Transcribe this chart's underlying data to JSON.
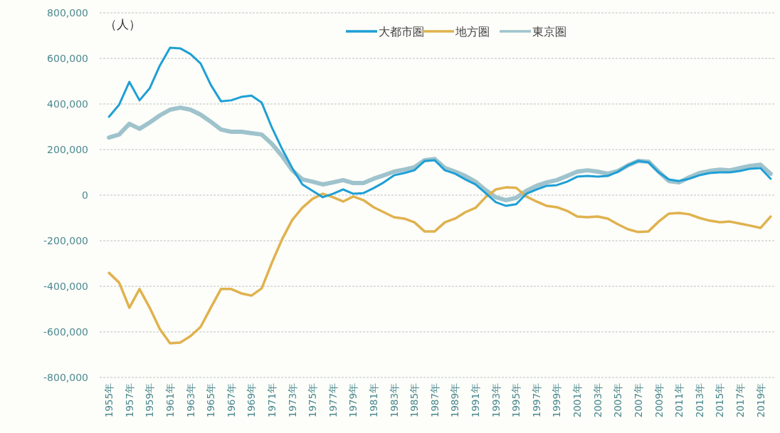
{
  "chart_data": {
    "type": "line",
    "ylabel": "（人）",
    "categories": [
      "1955年",
      null,
      "1957年",
      null,
      "1959年",
      null,
      "1961年",
      null,
      "1963年",
      null,
      "1965年",
      null,
      "1967年",
      null,
      "1969年",
      null,
      "1971年",
      null,
      "1973年",
      null,
      "1975年",
      null,
      "1977年",
      null,
      "1979年",
      null,
      "1981年",
      null,
      "1983年",
      null,
      "1985年",
      null,
      "1987年",
      null,
      "1989年",
      null,
      "1991年",
      null,
      "1993年",
      null,
      "1995年",
      null,
      "1997年",
      null,
      "1999年",
      null,
      "2001年",
      null,
      "2003年",
      null,
      "2005年",
      null,
      "2007年",
      null,
      "2009年",
      null,
      "2011年",
      null,
      "2013年",
      null,
      "2015年",
      null,
      "2017年",
      null,
      "2019年",
      null
    ],
    "series": [
      {
        "name": "大都市圏",
        "color": "#1e9fd6",
        "values": [
          344000,
          397000,
          497000,
          416000,
          469000,
          569000,
          647000,
          644000,
          619000,
          578000,
          484000,
          412000,
          416000,
          431000,
          437000,
          406000,
          297000,
          203000,
          119000,
          47000,
          19000,
          -9000,
          6000,
          25000,
          6000,
          9000,
          31000,
          56000,
          87000,
          97000,
          109000,
          150000,
          153000,
          109000,
          94000,
          69000,
          47000,
          9000,
          -31000,
          -47000,
          -40000,
          6000,
          25000,
          41000,
          44000,
          59000,
          81000,
          84000,
          81000,
          84000,
          103000,
          131000,
          150000,
          144000,
          100000,
          69000,
          62000,
          72000,
          87000,
          97000,
          100000,
          100000,
          106000,
          116000,
          119000,
          72000
        ]
      },
      {
        "name": "地方圏",
        "color": "#e0b24e",
        "values": [
          -341000,
          -384000,
          -494000,
          -412000,
          -494000,
          -588000,
          -650000,
          -647000,
          -619000,
          -578000,
          -494000,
          -412000,
          -412000,
          -431000,
          -441000,
          -409000,
          -297000,
          -194000,
          -109000,
          -55000,
          -16000,
          6000,
          -9000,
          -28000,
          -6000,
          -22000,
          -53000,
          -75000,
          -97000,
          -103000,
          -119000,
          -159000,
          -159000,
          -119000,
          -103000,
          -75000,
          -56000,
          -9000,
          25000,
          34000,
          32000,
          -6000,
          -28000,
          -47000,
          -53000,
          -69000,
          -94000,
          -97000,
          -94000,
          -103000,
          -128000,
          -150000,
          -162000,
          -159000,
          -116000,
          -81000,
          -78000,
          -84000,
          -100000,
          -112000,
          -119000,
          -116000,
          -125000,
          -134000,
          -144000,
          -94000
        ]
      },
      {
        "name": "東京圏",
        "color": "#9fc3cc",
        "values": [
          253000,
          266000,
          313000,
          291000,
          319000,
          350000,
          375000,
          384000,
          375000,
          353000,
          322000,
          288000,
          278000,
          278000,
          272000,
          266000,
          225000,
          172000,
          109000,
          69000,
          59000,
          47000,
          56000,
          66000,
          53000,
          53000,
          72000,
          87000,
          103000,
          112000,
          122000,
          153000,
          159000,
          119000,
          103000,
          84000,
          59000,
          22000,
          -9000,
          -22000,
          -12000,
          19000,
          41000,
          56000,
          66000,
          84000,
          103000,
          109000,
          103000,
          94000,
          106000,
          131000,
          150000,
          147000,
          103000,
          62000,
          56000,
          78000,
          97000,
          106000,
          112000,
          109000,
          119000,
          128000,
          134000,
          94000
        ]
      }
    ],
    "ylim": [
      -800000,
      800000
    ],
    "yticks": [
      {
        "value": -800000,
        "label": "-800,000"
      },
      {
        "value": -600000,
        "label": "-600,000"
      },
      {
        "value": -400000,
        "label": "-400,000"
      },
      {
        "value": -200000,
        "label": "-200,000"
      },
      {
        "value": 0,
        "label": "0"
      },
      {
        "value": 200000,
        "label": "200,000"
      },
      {
        "value": 400000,
        "label": "400,000"
      },
      {
        "value": 600000,
        "label": "600,000"
      },
      {
        "value": 800000,
        "label": "800,000"
      }
    ],
    "grid": "y",
    "legend": "top",
    "marker": "none",
    "line_style": "solid"
  }
}
